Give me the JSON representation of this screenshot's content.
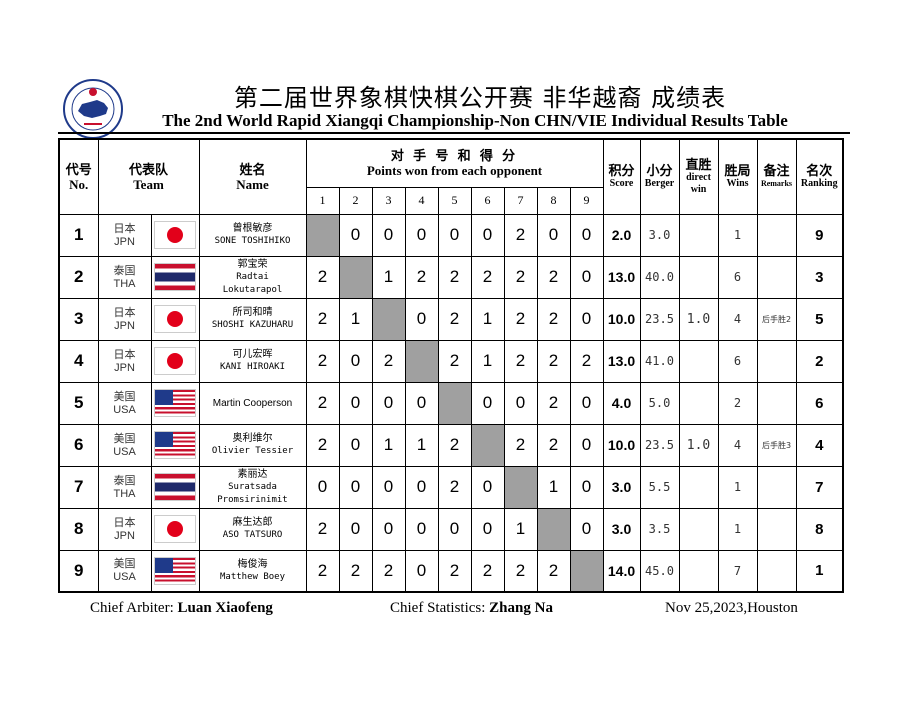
{
  "title_cn": "第二届世界象棋快棋公开赛  非华越裔  成绩表",
  "title_en": "The 2nd World Rapid Xiangqi Championship-Non CHN/VIE Individual Results Table",
  "headers": {
    "no_cn": "代号",
    "no_en": "No.",
    "team_cn": "代表队",
    "team_en": "Team",
    "name_cn": "姓名",
    "name_en": "Name",
    "opp_cn": "对 手 号 和 得 分",
    "opp_en": "Points won from each opponent",
    "opp_nums": [
      "1",
      "2",
      "3",
      "4",
      "5",
      "6",
      "7",
      "8",
      "9"
    ],
    "score_cn": "积分",
    "score_en": "Score",
    "berger_cn": "小分",
    "berger_en": "Berger",
    "direct_cn": "直胜",
    "direct_en1": "direct",
    "direct_en2": "win",
    "wins_cn": "胜局",
    "wins_en": "Wins",
    "remarks_cn": "备注",
    "remarks_en": "Remarks",
    "rank_cn": "名次",
    "rank_en": "Ranking"
  },
  "rows": [
    {
      "no": "1",
      "team_cn": "日本",
      "team_code": "JPN",
      "flag": "japan-flag",
      "name1": "曾根敏彦",
      "name2": "SONE TOSHIHIKO",
      "name3": "",
      "points": [
        "",
        "0",
        "0",
        "0",
        "0",
        "0",
        "2",
        "0",
        "0"
      ],
      "score": "2.0",
      "berger": "3.0",
      "direct": "",
      "wins": "1",
      "remark": "",
      "rank": "9"
    },
    {
      "no": "2",
      "team_cn": "泰国",
      "team_code": "THA",
      "flag": "thailand-flag",
      "name1": "郭宝荣",
      "name2": "Radtai",
      "name3": "Lokutarapol",
      "points": [
        "2",
        "",
        "1",
        "2",
        "2",
        "2",
        "2",
        "2",
        "0"
      ],
      "score": "13.0",
      "berger": "40.0",
      "direct": "",
      "wins": "6",
      "remark": "",
      "rank": "3"
    },
    {
      "no": "3",
      "team_cn": "日本",
      "team_code": "JPN",
      "flag": "japan-flag",
      "name1": "所司和晴",
      "name2": "SHOSHI  KAZUHARU",
      "name3": "",
      "points": [
        "2",
        "1",
        "",
        "0",
        "2",
        "1",
        "2",
        "2",
        "0"
      ],
      "score": "10.0",
      "berger": "23.5",
      "direct": "1.0",
      "wins": "4",
      "remark": "后手胜2",
      "rank": "5"
    },
    {
      "no": "4",
      "team_cn": "日本",
      "team_code": "JPN",
      "flag": "japan-flag",
      "name1": "可儿宏晖",
      "name2": "KANI  HIROAKI",
      "name3": "",
      "points": [
        "2",
        "0",
        "2",
        "",
        "2",
        "1",
        "2",
        "2",
        "2"
      ],
      "score": "13.0",
      "berger": "41.0",
      "direct": "",
      "wins": "6",
      "remark": "",
      "rank": "2"
    },
    {
      "no": "5",
      "team_cn": "美国",
      "team_code": "USA",
      "flag": "usa-flag",
      "name1": "",
      "name2": "Martin Cooperson",
      "name3": "",
      "points": [
        "2",
        "0",
        "0",
        "0",
        "",
        "0",
        "0",
        "2",
        "0"
      ],
      "score": "4.0",
      "berger": "5.0",
      "direct": "",
      "wins": "2",
      "remark": "",
      "rank": "6"
    },
    {
      "no": "6",
      "team_cn": "美国",
      "team_code": "USA",
      "flag": "usa-flag",
      "name1": "奥利维尔",
      "name2": "Olivier Tessier",
      "name3": "",
      "points": [
        "2",
        "0",
        "1",
        "1",
        "2",
        "",
        "2",
        "2",
        "0"
      ],
      "score": "10.0",
      "berger": "23.5",
      "direct": "1.0",
      "wins": "4",
      "remark": "后手胜3",
      "rank": "4"
    },
    {
      "no": "7",
      "team_cn": "泰国",
      "team_code": "THA",
      "flag": "thailand-flag",
      "name1": "素丽达",
      "name2": "Suratsada",
      "name3": "Promsirinimit",
      "points": [
        "0",
        "0",
        "0",
        "0",
        "2",
        "0",
        "",
        "1",
        "0"
      ],
      "score": "3.0",
      "berger": "5.5",
      "direct": "",
      "wins": "1",
      "remark": "",
      "rank": "7"
    },
    {
      "no": "8",
      "team_cn": "日本",
      "team_code": "JPN",
      "flag": "japan-flag",
      "name1": "麻生达郎",
      "name2": "ASO TATSURO",
      "name3": "",
      "points": [
        "2",
        "0",
        "0",
        "0",
        "0",
        "0",
        "1",
        "",
        "0"
      ],
      "score": "3.0",
      "berger": "3.5",
      "direct": "",
      "wins": "1",
      "remark": "",
      "rank": "8"
    },
    {
      "no": "9",
      "team_cn": "美国",
      "team_code": "USA",
      "flag": "usa-flag",
      "name1": "梅俊海",
      "name2": "Matthew Boey",
      "name3": "",
      "points": [
        "2",
        "2",
        "2",
        "0",
        "2",
        "2",
        "2",
        "2",
        ""
      ],
      "score": "14.0",
      "berger": "45.0",
      "direct": "",
      "wins": "7",
      "remark": "",
      "rank": "1"
    }
  ],
  "footer": {
    "arbiter_label": "Chief Arbiter:",
    "arbiter_name": "Luan Xiaofeng",
    "stats_label": "Chief Statistics:",
    "stats_name": "Zhang Na",
    "date_place": "Nov 25,2023,Houston"
  },
  "colors": {
    "self_cell": "#a0a0a0",
    "japan_red": "#e2001a",
    "usa_blue": "#1f3a8a",
    "thai_red": "#c8102e"
  }
}
